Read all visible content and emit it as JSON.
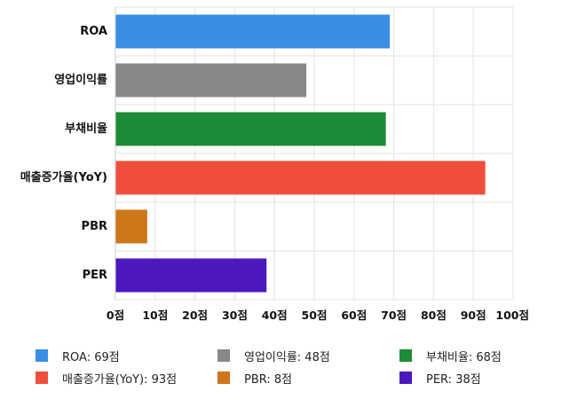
{
  "chart_data": {
    "type": "bar",
    "orientation": "horizontal",
    "categories": [
      "ROA",
      "영업이익률",
      "부채비율",
      "매출증가율(YoY)",
      "PBR",
      "PER"
    ],
    "values": [
      69,
      48,
      68,
      93,
      8,
      38
    ],
    "colors": [
      "#3a8ee6",
      "#888888",
      "#1e8c36",
      "#ef4f3a",
      "#cf751a",
      "#4c18c0"
    ],
    "xlim": [
      0,
      100
    ],
    "xticks": [
      0,
      10,
      20,
      30,
      40,
      50,
      60,
      70,
      80,
      90,
      100
    ],
    "tick_suffix": "점",
    "grid": true,
    "legend_position": "bottom",
    "legend": [
      {
        "label": "ROA: 69점",
        "color": "#3a8ee6"
      },
      {
        "label": "영업이익률: 48점",
        "color": "#888888"
      },
      {
        "label": "부채비율: 68점",
        "color": "#1e8c36"
      },
      {
        "label": "매출증가율(YoY): 93점",
        "color": "#ef4f3a"
      },
      {
        "label": "PBR: 8점",
        "color": "#cf751a"
      },
      {
        "label": "PER: 38점",
        "color": "#4c18c0"
      }
    ]
  }
}
